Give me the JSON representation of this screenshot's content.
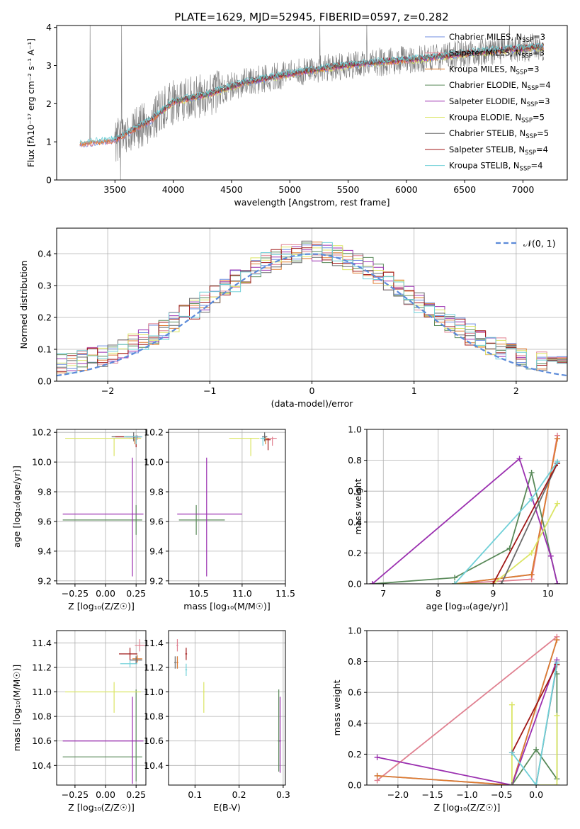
{
  "figure": {
    "title": "PLATE=1629, MJD=52945, FIBERID=0597, z=0.282"
  },
  "colors": {
    "Chabrier MILES": "#6f8ee0",
    "Salpeter MILES": "#e08090",
    "Kroupa MILES": "#e07b2e",
    "Chabrier ELODIE": "#5a8a5a",
    "Salpeter ELODIE": "#9b30b0",
    "Kroupa ELODIE": "#dbe565",
    "Chabrier STELIB": "#6a6a6a",
    "Salpeter STELIB": "#a01818",
    "Kroupa STELIB": "#70d0d8"
  },
  "chart_data": [
    {
      "id": "spectrum",
      "type": "line",
      "xlabel": "wavelength [Angstrom, rest frame]",
      "ylabel": "Flux [fλ10⁻¹⁷ erg cm⁻² s⁻¹ A⁻¹]",
      "xlim": [
        3000,
        7380
      ],
      "ylim": [
        0,
        4.05
      ],
      "xticks": [
        3500,
        4000,
        4500,
        5000,
        5500,
        6000,
        6500,
        7000
      ],
      "yticks": [
        0,
        1,
        2,
        3,
        4
      ],
      "legend_position": "top-right",
      "continuum": {
        "x": [
          3200,
          3500,
          3800,
          4000,
          4300,
          4600,
          5000,
          5400,
          5800,
          6200,
          6600,
          7000,
          7180
        ],
        "y": [
          0.95,
          1.05,
          1.55,
          2.05,
          2.25,
          2.55,
          2.78,
          2.98,
          3.1,
          3.2,
          3.35,
          3.45,
          3.5
        ]
      },
      "legend": [
        {
          "name": "Chabrier MILES, N_SSP=3",
          "key": "Chabrier MILES",
          "text": "Chabrier MILES, N",
          "sub": "SSP",
          "rest": "=3"
        },
        {
          "name": "Salpeter MILES, N_SSP=3",
          "key": "Salpeter MILES",
          "text": "Salpeter MILES, N",
          "sub": "SSP",
          "rest": "=3"
        },
        {
          "name": "Kroupa MILES, N_SSP=3",
          "key": "Kroupa MILES",
          "text": "Kroupa MILES, N",
          "sub": "SSP",
          "rest": "=3"
        },
        {
          "name": "Chabrier ELODIE, N_SSP=4",
          "key": "Chabrier ELODIE",
          "text": "Chabrier ELODIE, N",
          "sub": "SSP",
          "rest": "=4"
        },
        {
          "name": "Salpeter ELODIE, N_SSP=3",
          "key": "Salpeter ELODIE",
          "text": "Salpeter ELODIE, N",
          "sub": "SSP",
          "rest": "=3"
        },
        {
          "name": "Kroupa ELODIE, N_SSP=5",
          "key": "Kroupa ELODIE",
          "text": "Kroupa ELODIE, N",
          "sub": "SSP",
          "rest": "=5"
        },
        {
          "name": "Chabrier STELIB, N_SSP=5",
          "key": "Chabrier STELIB",
          "text": "Chabrier STELIB, N",
          "sub": "SSP",
          "rest": "=5"
        },
        {
          "name": "Salpeter STELIB, N_SSP=4",
          "key": "Salpeter STELIB",
          "text": "Salpeter STELIB, N",
          "sub": "SSP",
          "rest": "=4"
        },
        {
          "name": "Kroupa STELIB, N_SSP=4",
          "key": "Kroupa STELIB",
          "text": "Kroupa STELIB, N",
          "sub": "SSP",
          "rest": "=4"
        }
      ]
    },
    {
      "id": "residuals",
      "type": "histogram",
      "xlabel": "(data-model)/error",
      "ylabel": "Normed distribution",
      "xlim": [
        -2.5,
        2.5
      ],
      "ylim": [
        0,
        0.48
      ],
      "xticks": [
        -2,
        -1,
        0,
        1,
        2
      ],
      "yticks": [
        0.0,
        0.1,
        0.2,
        0.3,
        0.4
      ],
      "legend_label": "𝒩(0, 1)",
      "gaussian": {
        "mu": 0,
        "sigma": 1
      },
      "bin_width": 0.1,
      "note": "histograms of the 9 fits follow the standard-normal shape; step heights are read approximately from the figure"
    },
    {
      "id": "age_vs_Z",
      "type": "errorbar",
      "xlabel": "Z [log₁₀(Z/Z☉)]",
      "ylabel": "age  [log₁₀(age/yr)]",
      "xlim": [
        -0.4,
        0.33
      ],
      "ylim": [
        9.18,
        10.22
      ],
      "xticks": [
        -0.25,
        0.0,
        0.25
      ],
      "yticks": [
        9.2,
        9.4,
        9.6,
        9.8,
        10.0,
        10.2
      ],
      "points": [
        {
          "series": "Chabrier MILES",
          "x": 0.23,
          "y": 10.17,
          "xerr": 0.06,
          "yerr": [
            0.02,
            0.01
          ]
        },
        {
          "series": "Salpeter MILES",
          "x": 0.26,
          "y": 10.17,
          "xerr": 0.04,
          "yerr": [
            0.02,
            0.01
          ]
        },
        {
          "series": "Kroupa MILES",
          "x": 0.24,
          "y": 10.16,
          "xerr": 0.05,
          "yerr": [
            0.04,
            0.01
          ]
        },
        {
          "series": "Chabrier ELODIE",
          "x": 0.25,
          "y": 9.61,
          "xerr": [
            0.6,
            0.05
          ],
          "yerr": 0.1
        },
        {
          "series": "Salpeter ELODIE",
          "x": 0.22,
          "y": 9.65,
          "xerr": [
            0.57,
            0.09
          ],
          "yerr": [
            0.42,
            0.38
          ]
        },
        {
          "series": "Kroupa ELODIE",
          "x": 0.07,
          "y": 10.16,
          "xerr": [
            0.4,
            0.22
          ],
          "yerr": [
            0.12,
            0.0
          ]
        },
        {
          "series": "Chabrier STELIB",
          "x": 0.23,
          "y": 10.17,
          "xerr": [
            0.18,
            0.05
          ],
          "yerr": 0.03
        },
        {
          "series": "Salpeter STELIB",
          "x": 0.25,
          "y": 10.17,
          "xerr": [
            0.17,
            0.04
          ],
          "yerr": [
            0.07,
            0.01
          ]
        },
        {
          "series": "Kroupa STELIB",
          "x": 0.25,
          "y": 10.17,
          "xerr": [
            0.1,
            0.05
          ],
          "yerr": [
            0.05,
            0.01
          ]
        }
      ]
    },
    {
      "id": "age_vs_mass",
      "type": "errorbar",
      "xlabel": "mass [log₁₀(M/M☉)]",
      "ylabel": "",
      "xlim": [
        10.15,
        11.5
      ],
      "ylim": [
        9.18,
        10.22
      ],
      "xticks": [
        10.5,
        11.0,
        11.5
      ],
      "yticks": [
        9.2,
        9.4,
        9.6,
        9.8,
        10.0,
        10.2
      ],
      "points": [
        {
          "series": "Chabrier MILES",
          "x": 11.26,
          "y": 10.17,
          "xerr": 0.03,
          "yerr": [
            0.02,
            0.01
          ]
        },
        {
          "series": "Salpeter MILES",
          "x": 11.35,
          "y": 10.16,
          "xerr": 0.05,
          "yerr": [
            0.05,
            0.01
          ]
        },
        {
          "series": "Kroupa MILES",
          "x": 11.27,
          "y": 10.16,
          "xerr": 0.03,
          "yerr": [
            0.04,
            0.01
          ]
        },
        {
          "series": "Chabrier ELODIE",
          "x": 10.47,
          "y": 9.61,
          "xerr": [
            0.2,
            0.33
          ],
          "yerr": 0.1
        },
        {
          "series": "Salpeter ELODIE",
          "x": 10.59,
          "y": 9.65,
          "xerr": [
            0.34,
            0.41
          ],
          "yerr": [
            0.42,
            0.38
          ]
        },
        {
          "series": "Kroupa ELODIE",
          "x": 11.1,
          "y": 10.16,
          "xerr": [
            0.25,
            0.1
          ],
          "yerr": [
            0.12,
            0.0
          ]
        },
        {
          "series": "Chabrier STELIB",
          "x": 11.26,
          "y": 10.17,
          "xerr": 0.03,
          "yerr": 0.03
        },
        {
          "series": "Salpeter STELIB",
          "x": 11.3,
          "y": 10.15,
          "xerr": 0.03,
          "yerr": [
            0.07,
            0.01
          ]
        },
        {
          "series": "Kroupa STELIB",
          "x": 11.24,
          "y": 10.16,
          "xerr": 0.03,
          "yerr": [
            0.05,
            0.01
          ]
        }
      ]
    },
    {
      "id": "mass_weight_vs_age",
      "type": "line",
      "xlabel": "age  [log₁₀(age/yr)]",
      "ylabel": "mass weight",
      "xlim": [
        6.7,
        10.35
      ],
      "ylim": [
        0,
        1.0
      ],
      "xticks": [
        7,
        8,
        9,
        10
      ],
      "yticks": [
        0.0,
        0.2,
        0.4,
        0.6,
        0.8,
        1.0
      ],
      "series": [
        {
          "name": "Chabrier MILES",
          "x": [
            8.3,
            9.7,
            10.17
          ],
          "y": [
            0.0,
            0.06,
            0.94
          ]
        },
        {
          "name": "Salpeter MILES",
          "x": [
            8.3,
            9.7,
            10.17
          ],
          "y": [
            0.0,
            0.03,
            0.96
          ]
        },
        {
          "name": "Kroupa MILES",
          "x": [
            8.3,
            9.7,
            10.17
          ],
          "y": [
            0.0,
            0.06,
            0.94
          ]
        },
        {
          "name": "Chabrier ELODIE",
          "x": [
            6.8,
            8.3,
            9.3,
            9.7,
            10.17
          ],
          "y": [
            0.0,
            0.04,
            0.23,
            0.72,
            0.0
          ]
        },
        {
          "name": "Salpeter ELODIE",
          "x": [
            6.8,
            9.48,
            10.05,
            10.17
          ],
          "y": [
            0.0,
            0.81,
            0.18,
            0.0
          ]
        },
        {
          "name": "Kroupa ELODIE",
          "x": [
            8.3,
            9.0,
            9.7,
            10.17
          ],
          "y": [
            0.0,
            0.0,
            0.2,
            0.52
          ]
        },
        {
          "name": "Chabrier STELIB",
          "x": [
            9.15,
            10.17
          ],
          "y": [
            0.0,
            0.78
          ]
        },
        {
          "name": "Salpeter STELIB",
          "x": [
            9.0,
            10.17
          ],
          "y": [
            0.0,
            0.78
          ]
        },
        {
          "name": "Kroupa STELIB",
          "x": [
            8.3,
            9.7,
            10.17
          ],
          "y": [
            0.0,
            0.55,
            0.79
          ]
        }
      ]
    },
    {
      "id": "mass_vs_Z",
      "type": "errorbar",
      "xlabel": "Z [log₁₀(Z/Z☉)]",
      "ylabel": "mass [log₁₀(M/M☉)]",
      "xlim": [
        -0.4,
        0.33
      ],
      "ylim": [
        10.24,
        11.5
      ],
      "xticks": [
        -0.25,
        0.0,
        0.25
      ],
      "yticks": [
        10.4,
        10.6,
        10.8,
        11.0,
        11.2,
        11.4
      ],
      "points": [
        {
          "series": "Chabrier MILES",
          "x": 0.25,
          "y": 11.26,
          "xerr": 0.04,
          "yerr": 0.03
        },
        {
          "series": "Salpeter MILES",
          "x": 0.28,
          "y": 11.38,
          "xerr": 0.04,
          "yerr": 0.05
        },
        {
          "series": "Kroupa MILES",
          "x": 0.26,
          "y": 11.27,
          "xerr": 0.04,
          "yerr": 0.03
        },
        {
          "series": "Chabrier ELODIE",
          "x": 0.25,
          "y": 10.47,
          "xerr": [
            0.6,
            0.05
          ],
          "yerr": [
            0.2,
            0.55
          ]
        },
        {
          "series": "Salpeter ELODIE",
          "x": 0.22,
          "y": 10.6,
          "xerr": [
            0.57,
            0.09
          ],
          "yerr": [
            0.35,
            0.36
          ]
        },
        {
          "series": "Kroupa ELODIE",
          "x": 0.07,
          "y": 11.0,
          "xerr": [
            0.4,
            0.22
          ],
          "yerr": [
            0.17,
            0.08
          ]
        },
        {
          "series": "Chabrier STELIB",
          "x": 0.25,
          "y": 11.26,
          "xerr": 0.05,
          "yerr": 0.03
        },
        {
          "series": "Salpeter STELIB",
          "x": 0.2,
          "y": 11.31,
          "xerr": [
            0.09,
            0.06
          ],
          "yerr": 0.05
        },
        {
          "series": "Kroupa STELIB",
          "x": 0.2,
          "y": 11.23,
          "xerr": [
            0.08,
            0.06
          ],
          "yerr": 0.03
        }
      ]
    },
    {
      "id": "mass_vs_EBV",
      "type": "errorbar",
      "xlabel": "E(B-V)",
      "ylabel": "",
      "xlim": [
        0.04,
        0.305
      ],
      "ylim": [
        10.24,
        11.5
      ],
      "xticks": [
        0.1,
        0.2,
        0.3
      ],
      "yticks": [
        10.4,
        10.6,
        10.8,
        11.0,
        11.2,
        11.4
      ],
      "points": [
        {
          "series": "Chabrier MILES",
          "x": 0.06,
          "y": 11.24,
          "xerr": 0.002,
          "yerr": 0.05
        },
        {
          "series": "Salpeter MILES",
          "x": 0.06,
          "y": 11.38,
          "xerr": 0.002,
          "yerr": 0.05
        },
        {
          "series": "Kroupa MILES",
          "x": 0.06,
          "y": 11.24,
          "xerr": 0.002,
          "yerr": 0.05
        },
        {
          "series": "Chabrier ELODIE",
          "x": 0.29,
          "y": 10.6,
          "xerr": 0.002,
          "yerr": [
            0.25,
            0.42
          ]
        },
        {
          "series": "Salpeter ELODIE",
          "x": 0.293,
          "y": 10.6,
          "xerr": 0.002,
          "yerr": [
            0.26,
            0.36
          ]
        },
        {
          "series": "Kroupa ELODIE",
          "x": 0.12,
          "y": 11.0,
          "xerr": 0.002,
          "yerr": [
            0.17,
            0.08
          ]
        },
        {
          "series": "Chabrier STELIB",
          "x": 0.055,
          "y": 11.24,
          "xerr": 0.002,
          "yerr": 0.05
        },
        {
          "series": "Salpeter STELIB",
          "x": 0.08,
          "y": 11.31,
          "xerr": 0.002,
          "yerr": 0.05
        },
        {
          "series": "Kroupa STELIB",
          "x": 0.08,
          "y": 11.18,
          "xerr": 0.002,
          "yerr": 0.05
        }
      ]
    },
    {
      "id": "mass_weight_vs_Z",
      "type": "line",
      "xlabel": "Z [log₁₀(Z/Z☉)]",
      "ylabel": "mass weight",
      "xlim": [
        -2.45,
        0.45
      ],
      "ylim": [
        0,
        1.0
      ],
      "xticks": [
        -2.0,
        -1.5,
        -1.0,
        -0.5,
        0.0
      ],
      "yticks": [
        0.0,
        0.2,
        0.4,
        0.6,
        0.8,
        1.0
      ],
      "series": [
        {
          "name": "Chabrier MILES",
          "x": [
            -2.3,
            -0.35,
            0.3
          ],
          "y": [
            0.06,
            0.0,
            0.94
          ]
        },
        {
          "name": "Salpeter MILES",
          "x": [
            -2.3,
            0.3
          ],
          "y": [
            0.03,
            0.96
          ]
        },
        {
          "name": "Kroupa MILES",
          "x": [
            -2.3,
            -0.35,
            0.3
          ],
          "y": [
            0.06,
            0.0,
            0.94
          ]
        },
        {
          "name": "Chabrier ELODIE",
          "x": [
            -0.35,
            0.0,
            0.3,
            0.3
          ],
          "y": [
            0.0,
            0.23,
            0.04,
            0.72
          ]
        },
        {
          "name": "Salpeter ELODIE",
          "x": [
            -2.3,
            -0.35,
            0.3
          ],
          "y": [
            0.18,
            0.0,
            0.81
          ]
        },
        {
          "name": "Kroupa ELODIE",
          "x": [
            -0.35,
            -0.35,
            0.0,
            0.3,
            0.3
          ],
          "y": [
            0.52,
            0.0,
            0.0,
            0.0,
            0.45
          ]
        },
        {
          "name": "Chabrier STELIB",
          "x": [
            -0.35,
            0.0,
            0.3
          ],
          "y": [
            0.0,
            0.0,
            0.78
          ]
        },
        {
          "name": "Salpeter STELIB",
          "x": [
            -0.35,
            0.3
          ],
          "y": [
            0.21,
            0.78
          ]
        },
        {
          "name": "Kroupa STELIB",
          "x": [
            -0.35,
            0.0,
            0.3
          ],
          "y": [
            0.21,
            0.0,
            0.79
          ]
        }
      ]
    }
  ]
}
